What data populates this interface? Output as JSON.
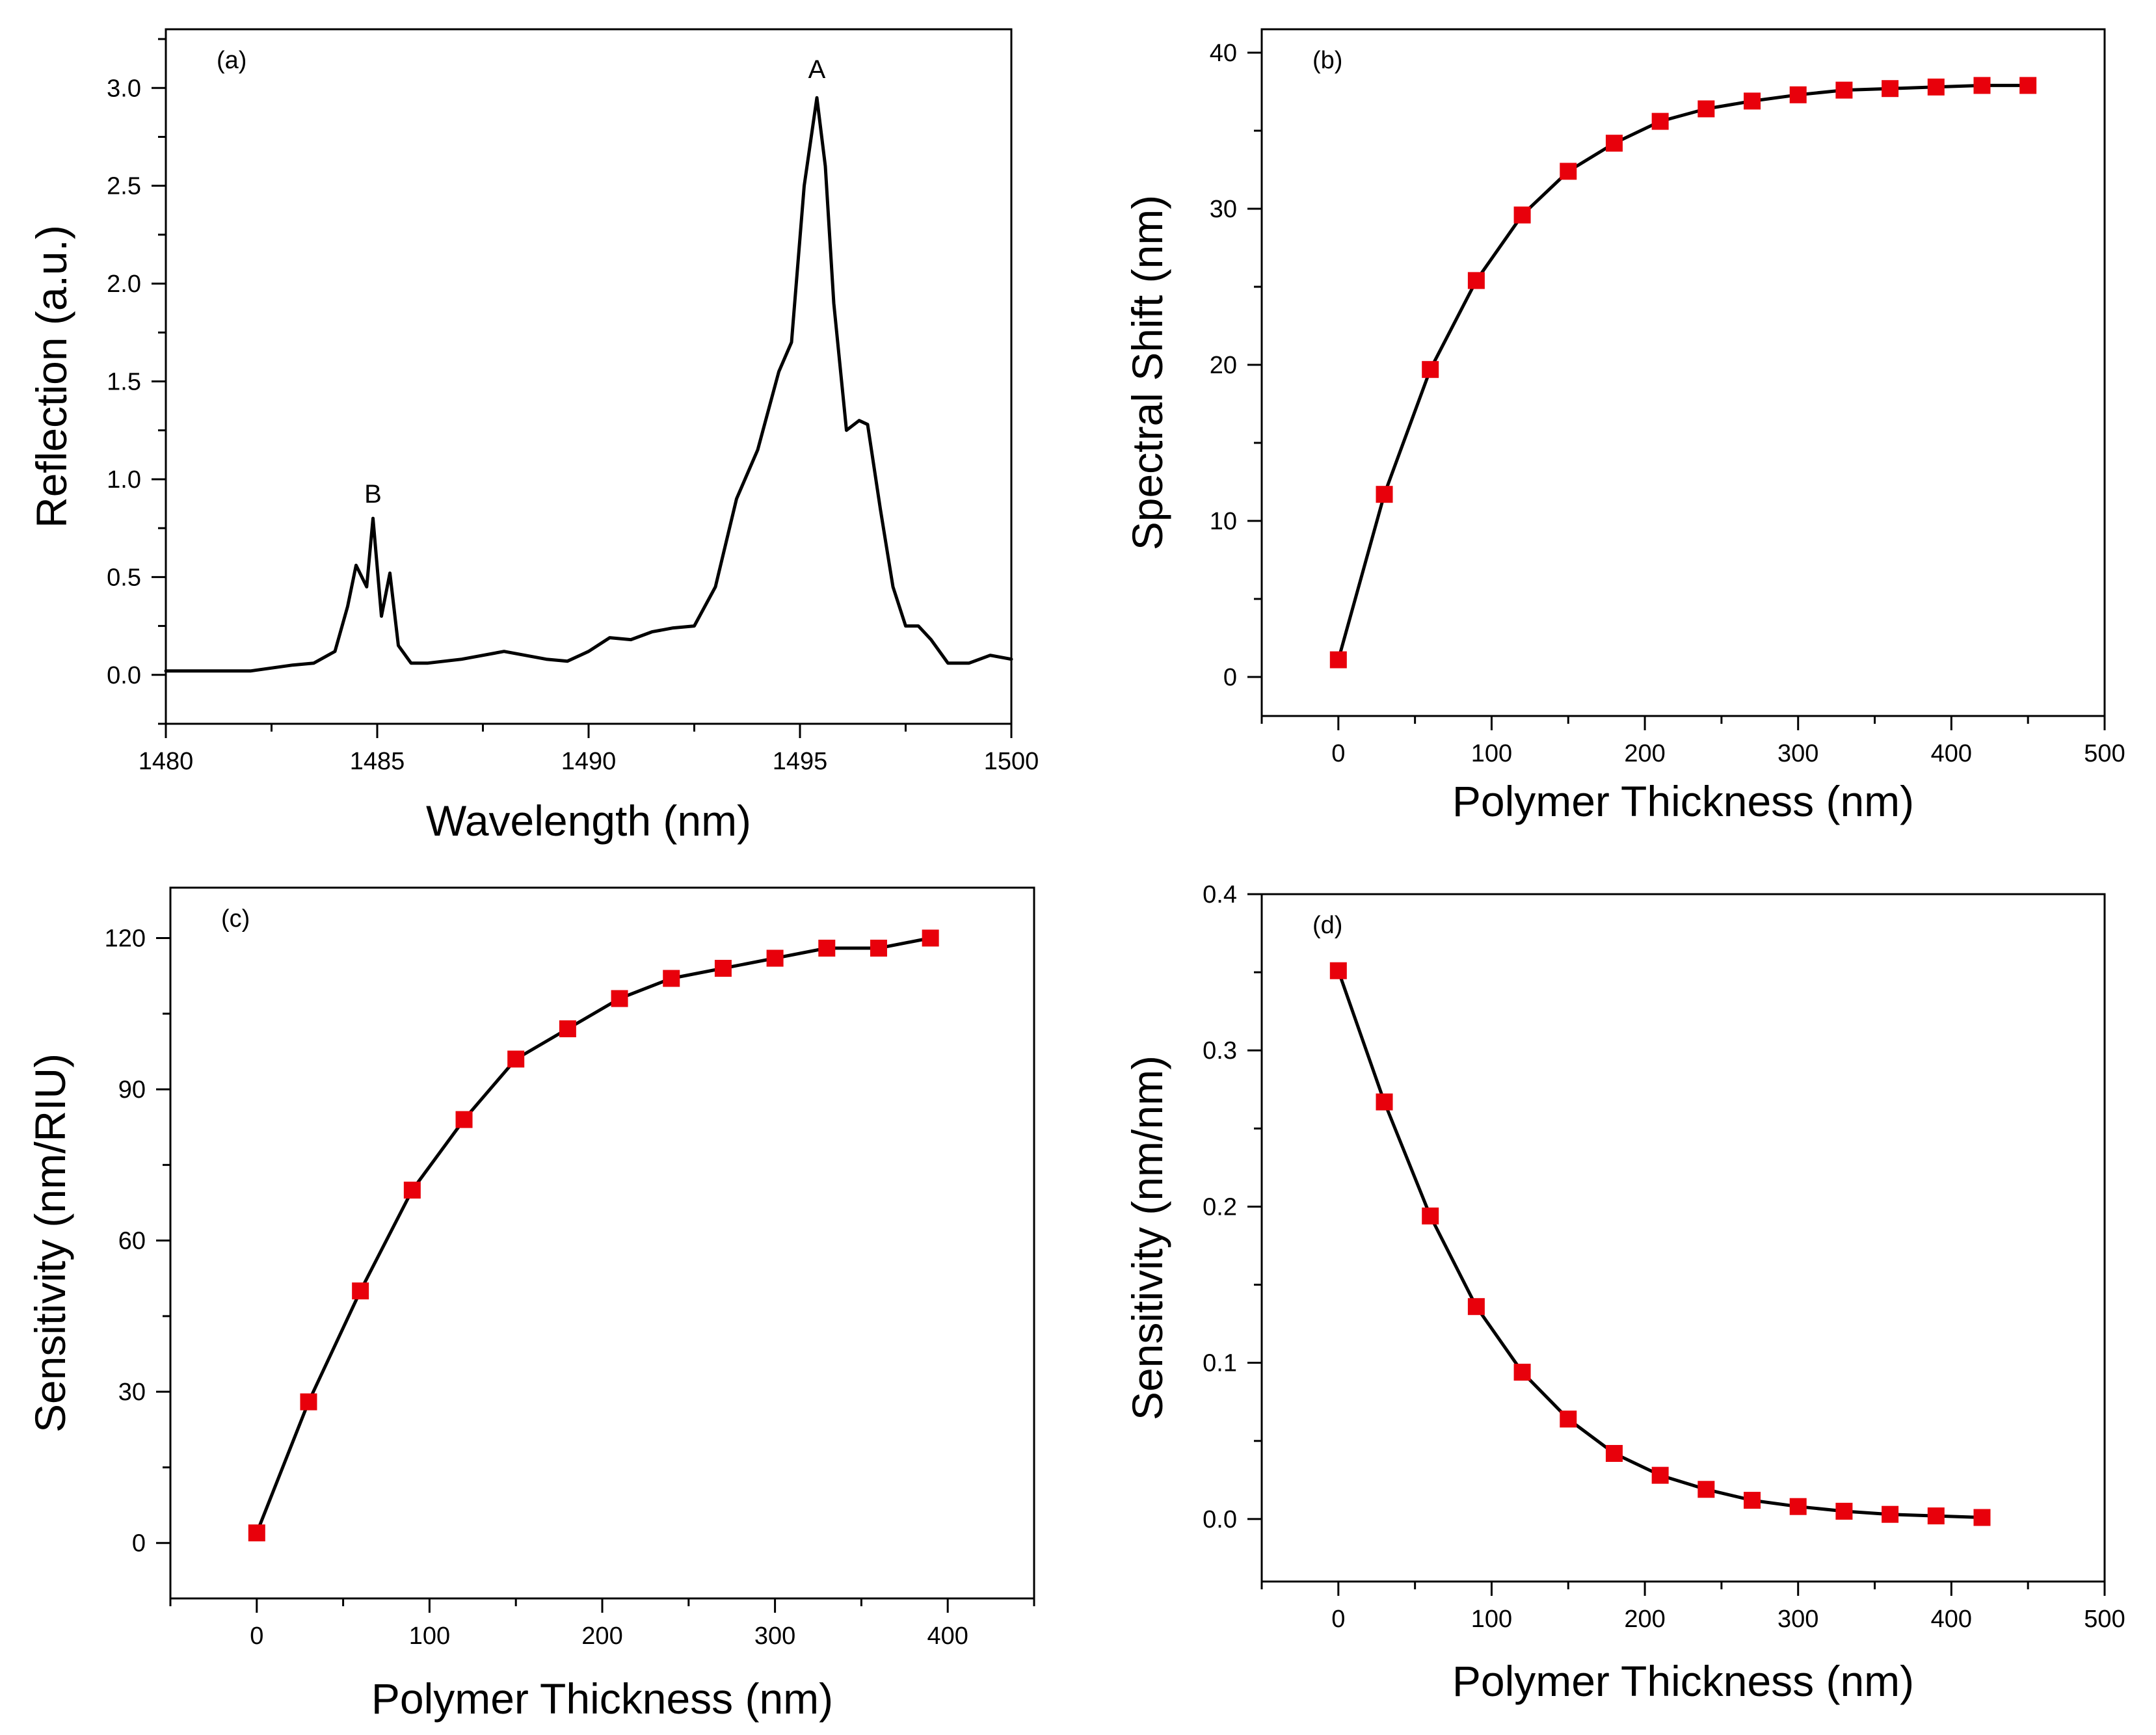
{
  "colors": {
    "line": "#000000",
    "marker": "#e8000b",
    "axis": "#000000"
  },
  "chart_data": [
    {
      "id": "a",
      "type": "line",
      "panel_label": "(a)",
      "xlabel": "Wavelength (nm)",
      "ylabel": "Reflection (a.u.)",
      "xlim": [
        1480,
        1500
      ],
      "ylim": [
        -0.25,
        3.3
      ],
      "xticks": [
        1480,
        1485,
        1490,
        1495,
        1500
      ],
      "xtick_labels": [
        "1480",
        "1485",
        "1490",
        "1495",
        "1500"
      ],
      "yticks": [
        0.0,
        0.5,
        1.0,
        1.5,
        2.0,
        2.5,
        3.0
      ],
      "ytick_labels": [
        "0.0",
        "0.5",
        "1.0",
        "1.5",
        "2.0",
        "2.5",
        "3.0"
      ],
      "annotations": [
        {
          "text": "A",
          "x": 1495.4,
          "y": 3.05
        },
        {
          "text": "B",
          "x": 1484.9,
          "y": 0.88
        }
      ],
      "series": [
        {
          "name": "Reflection spectrum",
          "markers": false,
          "x": [
            1480,
            1481,
            1482,
            1483,
            1483.5,
            1484,
            1484.3,
            1484.5,
            1484.75,
            1484.9,
            1485.1,
            1485.3,
            1485.5,
            1485.8,
            1486.2,
            1487,
            1488,
            1488.5,
            1489,
            1489.5,
            1490,
            1490.5,
            1491,
            1491.5,
            1492,
            1492.5,
            1493,
            1493.5,
            1494,
            1494.5,
            1494.8,
            1495.1,
            1495.4,
            1495.6,
            1495.8,
            1496.1,
            1496.4,
            1496.6,
            1496.9,
            1497.2,
            1497.5,
            1497.8,
            1498.1,
            1498.5,
            1499,
            1499.5,
            1500
          ],
          "values": [
            0.02,
            0.02,
            0.02,
            0.05,
            0.06,
            0.12,
            0.35,
            0.56,
            0.45,
            0.8,
            0.3,
            0.52,
            0.15,
            0.06,
            0.06,
            0.08,
            0.12,
            0.1,
            0.08,
            0.07,
            0.12,
            0.19,
            0.18,
            0.22,
            0.24,
            0.25,
            0.45,
            0.9,
            1.15,
            1.55,
            1.7,
            2.5,
            2.95,
            2.6,
            1.9,
            1.25,
            1.3,
            1.28,
            0.85,
            0.45,
            0.25,
            0.25,
            0.18,
            0.06,
            0.06,
            0.1,
            0.08
          ]
        }
      ]
    },
    {
      "id": "b",
      "type": "line",
      "panel_label": "(b)",
      "xlabel": "Polymer Thickness (nm)",
      "ylabel": "Spectral Shift (nm)",
      "xlim": [
        -50,
        500
      ],
      "ylim": [
        -2.5,
        41.5
      ],
      "xticks": [
        0,
        100,
        200,
        300,
        400,
        500
      ],
      "xtick_labels": [
        "0",
        "100",
        "200",
        "300",
        "400",
        "500"
      ],
      "yticks": [
        0,
        10,
        20,
        30,
        40
      ],
      "ytick_labels": [
        "0",
        "10",
        "20",
        "30",
        "40"
      ],
      "series": [
        {
          "name": "Spectral shift",
          "markers": true,
          "x": [
            0,
            30,
            60,
            90,
            120,
            150,
            180,
            210,
            240,
            270,
            300,
            330,
            360,
            390,
            420,
            450
          ],
          "values": [
            1.1,
            11.7,
            19.7,
            25.4,
            29.6,
            32.4,
            34.2,
            35.6,
            36.4,
            36.9,
            37.3,
            37.6,
            37.7,
            37.8,
            37.9,
            37.9
          ]
        }
      ]
    },
    {
      "id": "c",
      "type": "line",
      "panel_label": "(c)",
      "xlabel": "Polymer Thickness (nm)",
      "ylabel": "Sensitivity (nm/RIU)",
      "xlim": [
        -50,
        450
      ],
      "ylim": [
        -11,
        130
      ],
      "xticks": [
        0,
        100,
        200,
        300,
        400
      ],
      "xtick_labels": [
        "0",
        "100",
        "200",
        "300",
        "400"
      ],
      "yticks": [
        0,
        30,
        60,
        90,
        120
      ],
      "ytick_labels": [
        "0",
        "30",
        "60",
        "90",
        "120"
      ],
      "series": [
        {
          "name": "Sensitivity",
          "markers": true,
          "x": [
            0,
            30,
            60,
            90,
            120,
            150,
            180,
            210,
            240,
            270,
            300,
            330,
            360,
            390
          ],
          "values": [
            2,
            28,
            50,
            70,
            84,
            96,
            102,
            108,
            112,
            114,
            116,
            118,
            118,
            120
          ]
        }
      ]
    },
    {
      "id": "d",
      "type": "line",
      "panel_label": "(d)",
      "xlabel": "Polymer Thickness (nm)",
      "ylabel": "Sensitivity (nm/nm)",
      "xlim": [
        -50,
        500
      ],
      "ylim": [
        -0.04,
        0.4
      ],
      "xticks": [
        0,
        100,
        200,
        300,
        400,
        500
      ],
      "xtick_labels": [
        "0",
        "100",
        "200",
        "300",
        "400",
        "500"
      ],
      "yticks": [
        0.0,
        0.1,
        0.2,
        0.3,
        0.4
      ],
      "ytick_labels": [
        "0.0",
        "0.1",
        "0.2",
        "0.3",
        "0.4"
      ],
      "series": [
        {
          "name": "Sensitivity",
          "markers": true,
          "x": [
            0,
            30,
            60,
            90,
            120,
            150,
            180,
            210,
            240,
            270,
            300,
            330,
            360,
            390,
            420
          ],
          "values": [
            0.351,
            0.267,
            0.194,
            0.136,
            0.094,
            0.064,
            0.042,
            0.028,
            0.019,
            0.012,
            0.008,
            0.005,
            0.003,
            0.002,
            0.001
          ]
        }
      ]
    }
  ]
}
